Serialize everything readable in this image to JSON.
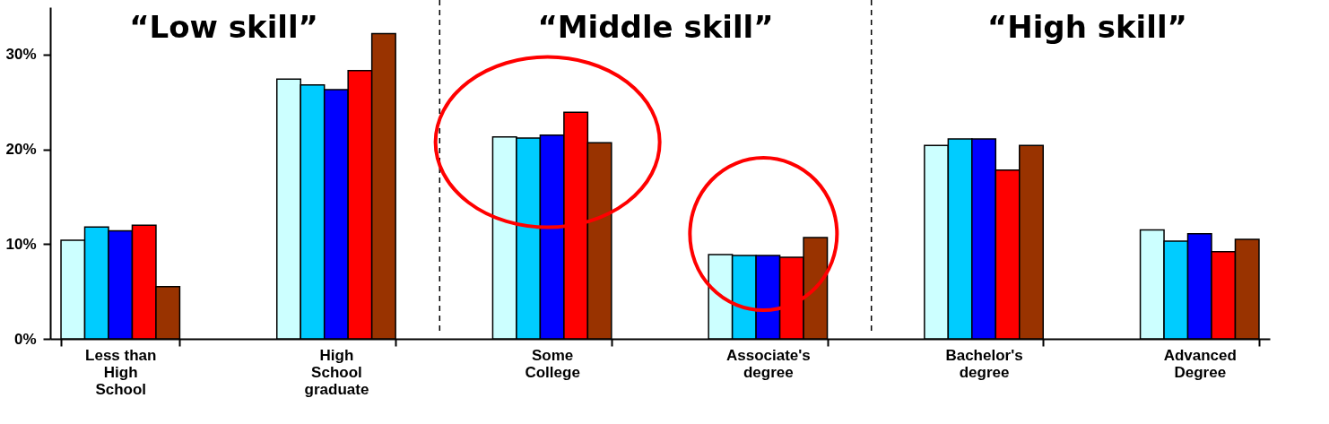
{
  "chart_data": {
    "type": "bar",
    "categories": [
      "Less than High School",
      "High School graduate",
      "Some College",
      "Associate's degree",
      "Bachelor's degree",
      "Advanced Degree"
    ],
    "series": [
      {
        "color": "#ccffff",
        "values": [
          10.4,
          27.4,
          21.3,
          8.9,
          20.4,
          11.5
        ]
      },
      {
        "color": "#00ccff",
        "values": [
          11.8,
          26.8,
          21.2,
          8.8,
          21.1,
          10.3
        ]
      },
      {
        "color": "#0000ff",
        "values": [
          11.4,
          26.3,
          21.5,
          8.8,
          21.1,
          11.1
        ]
      },
      {
        "color": "#ff0000",
        "values": [
          12.0,
          28.3,
          23.9,
          8.6,
          17.8,
          9.2
        ]
      },
      {
        "color": "#993300",
        "values": [
          5.5,
          32.2,
          20.7,
          10.7,
          20.4,
          10.5
        ]
      }
    ],
    "ylim": [
      0,
      35
    ],
    "yticks": [
      {
        "value": 0,
        "label": "0%"
      },
      {
        "value": 10,
        "label": "10%"
      },
      {
        "value": 20,
        "label": "20%"
      },
      {
        "value": 30,
        "label": "30%"
      }
    ],
    "annotations": [
      "“Low skill”",
      "“Middle skill”",
      "“High skill”"
    ],
    "grid": false
  }
}
